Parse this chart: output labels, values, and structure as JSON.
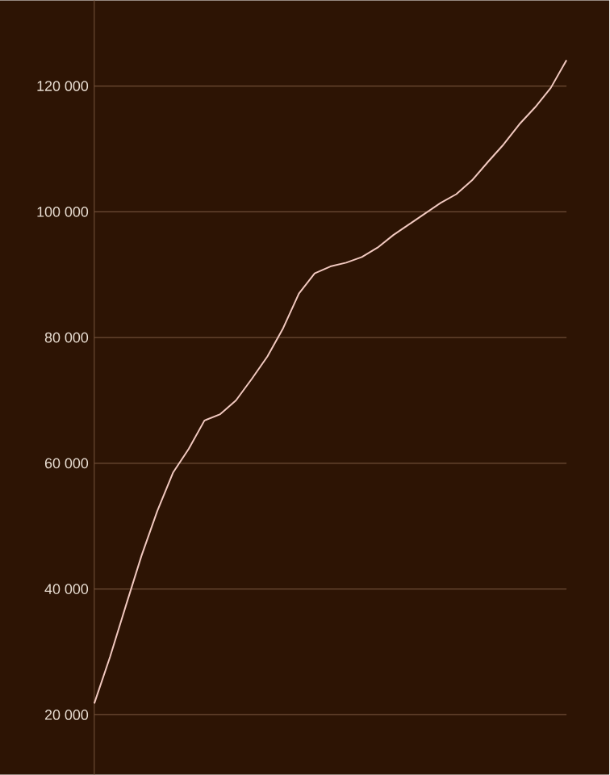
{
  "chart_data": {
    "type": "line",
    "color": "#f2c9c0",
    "grid": "y",
    "tick_labels": "y",
    "marker": "none",
    "line_style": "solid",
    "categories": [
      null,
      null,
      null,
      null,
      null,
      null,
      null,
      null,
      null,
      null,
      null,
      null,
      null,
      null,
      null,
      null,
      null,
      null,
      null,
      null,
      null,
      null,
      null,
      null,
      null,
      null,
      null,
      null,
      null,
      null,
      null
    ],
    "values": [
      21800,
      29200,
      37300,
      45300,
      52400,
      58500,
      62300,
      66800,
      67800,
      70000,
      73400,
      77000,
      81500,
      87000,
      90200,
      91300,
      91900,
      92800,
      94300,
      96300,
      98000,
      99700,
      101400,
      102800,
      105000,
      107900,
      110700,
      113900,
      116600,
      119700,
      124100
    ],
    "ylim": [
      10500,
      133600
    ],
    "yticks": [
      {
        "value": 20000,
        "label": "20 000"
      },
      {
        "value": 40000,
        "label": "40 000"
      },
      {
        "value": 60000,
        "label": "60 000"
      },
      {
        "value": 80000,
        "label": "80 000"
      },
      {
        "value": 100000,
        "label": "100 000"
      },
      {
        "value": 120000,
        "label": "120 000"
      }
    ]
  }
}
